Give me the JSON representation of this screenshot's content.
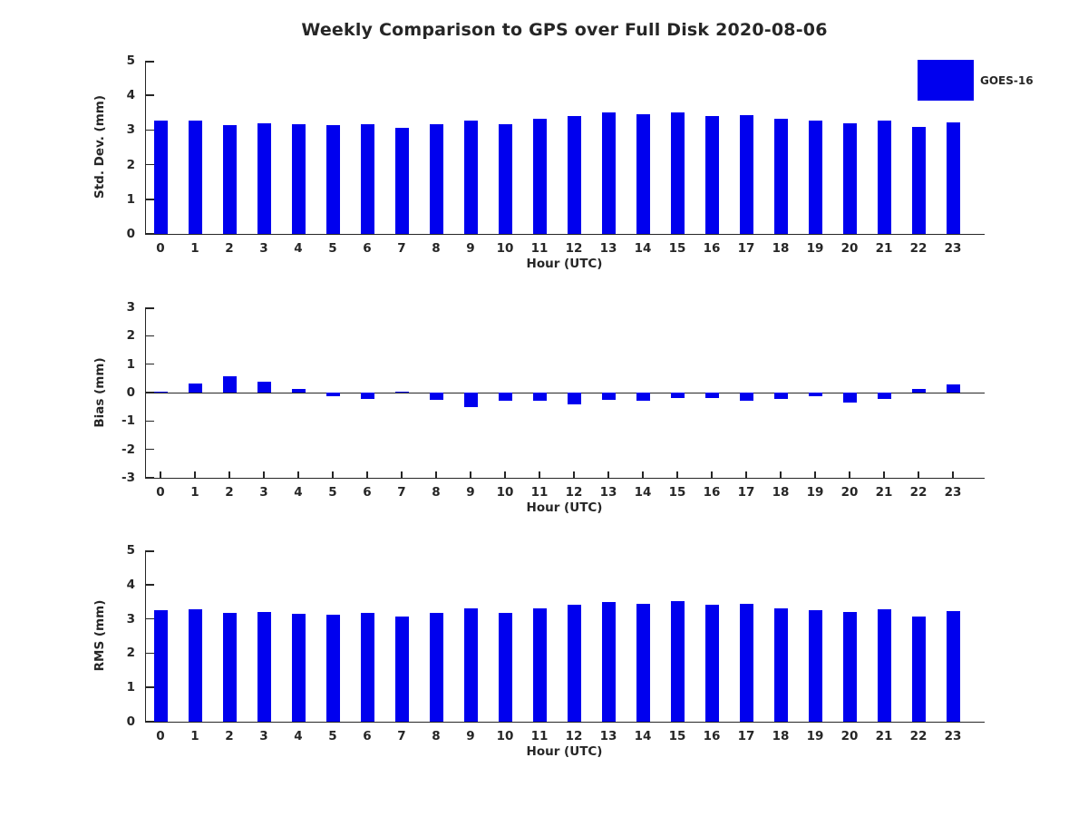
{
  "title": "Weekly Comparison to GPS over Full Disk 2020-08-06",
  "legend": {
    "label": "GOES-16",
    "color": "#0000ee",
    "position": "top-right"
  },
  "colors": {
    "bar": "#0000ee",
    "text": "#262626",
    "axis": "#262626"
  },
  "chart_data": [
    {
      "type": "bar",
      "title": "Weekly Comparison to GPS over Full Disk 2020-08-06",
      "series_name": "GOES-16",
      "ylabel": "Std. Dev. (mm)",
      "xlabel": "Hour (UTC)",
      "categories": [
        "0",
        "1",
        "2",
        "3",
        "4",
        "5",
        "6",
        "7",
        "8",
        "9",
        "10",
        "11",
        "12",
        "13",
        "14",
        "15",
        "16",
        "17",
        "18",
        "19",
        "20",
        "21",
        "22",
        "23"
      ],
      "values": [
        3.27,
        3.28,
        3.15,
        3.2,
        3.17,
        3.14,
        3.17,
        3.06,
        3.17,
        3.28,
        3.17,
        3.32,
        3.4,
        3.5,
        3.45,
        3.5,
        3.4,
        3.43,
        3.32,
        3.26,
        3.19,
        3.27,
        3.08,
        3.21
      ],
      "ylim": [
        0,
        5
      ],
      "yticks": [
        0,
        1,
        2,
        3,
        4,
        5
      ],
      "grid": false,
      "bar_color": "#0000ee"
    },
    {
      "type": "bar",
      "title": "",
      "series_name": "GOES-16",
      "ylabel": "Bias (mm)",
      "xlabel": "Hour (UTC)",
      "categories": [
        "0",
        "1",
        "2",
        "3",
        "4",
        "5",
        "6",
        "7",
        "8",
        "9",
        "10",
        "11",
        "12",
        "13",
        "14",
        "15",
        "16",
        "17",
        "18",
        "19",
        "20",
        "21",
        "22",
        "23"
      ],
      "values": [
        0.04,
        0.33,
        0.58,
        0.39,
        0.13,
        -0.14,
        -0.21,
        0.02,
        -0.24,
        -0.5,
        -0.28,
        -0.28,
        -0.4,
        -0.24,
        -0.28,
        -0.19,
        -0.18,
        -0.28,
        -0.22,
        -0.14,
        -0.34,
        -0.23,
        0.13,
        0.28
      ],
      "ylim": [
        -3,
        3
      ],
      "yticks": [
        -3,
        -2,
        -1,
        0,
        1,
        2,
        3
      ],
      "grid": false,
      "bar_color": "#0000ee"
    },
    {
      "type": "bar",
      "title": "",
      "series_name": "GOES-16",
      "ylabel": "RMS (mm)",
      "xlabel": "Hour (UTC)",
      "categories": [
        "0",
        "1",
        "2",
        "3",
        "4",
        "5",
        "6",
        "7",
        "8",
        "9",
        "10",
        "11",
        "12",
        "13",
        "14",
        "15",
        "16",
        "17",
        "18",
        "19",
        "20",
        "21",
        "22",
        "23"
      ],
      "values": [
        3.25,
        3.28,
        3.17,
        3.21,
        3.15,
        3.12,
        3.17,
        3.06,
        3.17,
        3.3,
        3.17,
        3.32,
        3.4,
        3.5,
        3.45,
        3.51,
        3.4,
        3.44,
        3.32,
        3.25,
        3.19,
        3.27,
        3.06,
        3.22
      ],
      "ylim": [
        0,
        5
      ],
      "yticks": [
        0,
        1,
        2,
        3,
        4,
        5
      ],
      "grid": false,
      "bar_color": "#0000ee"
    }
  ]
}
